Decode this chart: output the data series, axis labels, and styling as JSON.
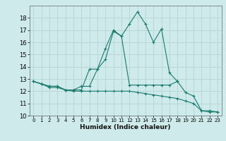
{
  "title": "",
  "xlabel": "Humidex (Indice chaleur)",
  "ylabel": "",
  "background_color": "#ceeaea",
  "grid_color": "#b8d8d8",
  "line_color": "#1a7a6e",
  "xlim": [
    -0.5,
    23.5
  ],
  "ylim": [
    10,
    19
  ],
  "yticks": [
    10,
    11,
    12,
    13,
    14,
    15,
    16,
    17,
    18
  ],
  "xticks": [
    0,
    1,
    2,
    3,
    4,
    5,
    6,
    7,
    8,
    9,
    10,
    11,
    12,
    13,
    14,
    15,
    16,
    17,
    18,
    19,
    20,
    21,
    22,
    23
  ],
  "series": [
    {
      "x": [
        0,
        1,
        2,
        3,
        4,
        5,
        6,
        7,
        8,
        9,
        10,
        11,
        12,
        13,
        14,
        15,
        16,
        17,
        18,
        19,
        20,
        21,
        22,
        23
      ],
      "y": [
        12.8,
        12.6,
        12.4,
        12.4,
        12.1,
        12.1,
        12.1,
        13.8,
        13.8,
        14.6,
        16.9,
        16.5,
        17.5,
        18.5,
        17.5,
        16.0,
        17.1,
        13.5,
        12.8,
        11.9,
        11.6,
        10.4,
        10.4,
        10.3
      ]
    },
    {
      "x": [
        0,
        1,
        2,
        3,
        4,
        5,
        6,
        7,
        8,
        9,
        10,
        11,
        12,
        13,
        14,
        15,
        16,
        17,
        18
      ],
      "y": [
        12.8,
        12.6,
        12.4,
        12.4,
        12.1,
        12.1,
        12.4,
        12.4,
        13.8,
        15.5,
        17.0,
        16.5,
        12.5,
        12.5,
        12.5,
        12.5,
        12.5,
        12.5,
        12.8
      ]
    },
    {
      "x": [
        0,
        1,
        2,
        3,
        4,
        5,
        6,
        7,
        8,
        9,
        10,
        11,
        12,
        13,
        14,
        15,
        16,
        17,
        18,
        19,
        20,
        21,
        22,
        23
      ],
      "y": [
        12.8,
        12.6,
        12.3,
        12.3,
        12.1,
        12.0,
        12.0,
        12.0,
        12.0,
        12.0,
        12.0,
        12.0,
        12.0,
        11.9,
        11.8,
        11.7,
        11.6,
        11.5,
        11.4,
        11.2,
        11.0,
        10.4,
        10.3,
        10.3
      ]
    }
  ]
}
